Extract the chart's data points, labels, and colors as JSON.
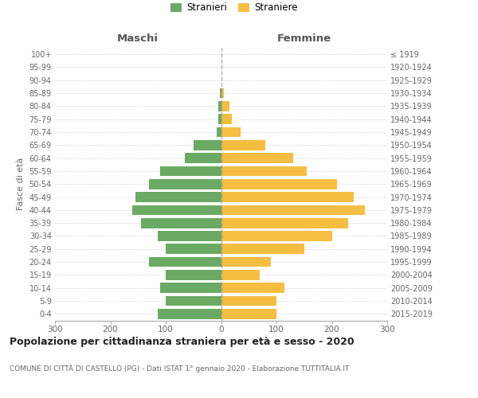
{
  "age_groups": [
    "0-4",
    "5-9",
    "10-14",
    "15-19",
    "20-24",
    "25-29",
    "30-34",
    "35-39",
    "40-44",
    "45-49",
    "50-54",
    "55-59",
    "60-64",
    "65-69",
    "70-74",
    "75-79",
    "80-84",
    "85-89",
    "90-94",
    "95-99",
    "100+"
  ],
  "birth_years": [
    "2015-2019",
    "2010-2014",
    "2005-2009",
    "2000-2004",
    "1995-1999",
    "1990-1994",
    "1985-1989",
    "1980-1984",
    "1975-1979",
    "1970-1974",
    "1965-1969",
    "1960-1964",
    "1955-1959",
    "1950-1954",
    "1945-1949",
    "1940-1944",
    "1935-1939",
    "1930-1934",
    "1925-1929",
    "1920-1924",
    "≤ 1919"
  ],
  "maschi": [
    115,
    100,
    110,
    100,
    130,
    100,
    115,
    145,
    160,
    155,
    130,
    110,
    65,
    50,
    8,
    5,
    5,
    2,
    0,
    0,
    0
  ],
  "femmine": [
    100,
    100,
    115,
    70,
    90,
    150,
    200,
    230,
    260,
    240,
    210,
    155,
    130,
    80,
    35,
    20,
    15,
    5,
    0,
    0,
    0
  ],
  "maschi_color": "#6aaa64",
  "femmine_color": "#f5be41",
  "background_color": "#ffffff",
  "grid_color": "#cccccc",
  "title": "Popolazione per cittadinanza straniera per età e sesso - 2020",
  "subtitle": "COMUNE DI CITTÀ DI CASTELLO (PG) - Dati ISTAT 1° gennaio 2020 - Elaborazione TUTTITALIA.IT",
  "left_label": "Maschi",
  "right_label": "Femmine",
  "ylabel_left": "Fasce di età",
  "xlim": 300,
  "legend_stranieri": "Stranieri",
  "legend_straniere": "Straniere"
}
